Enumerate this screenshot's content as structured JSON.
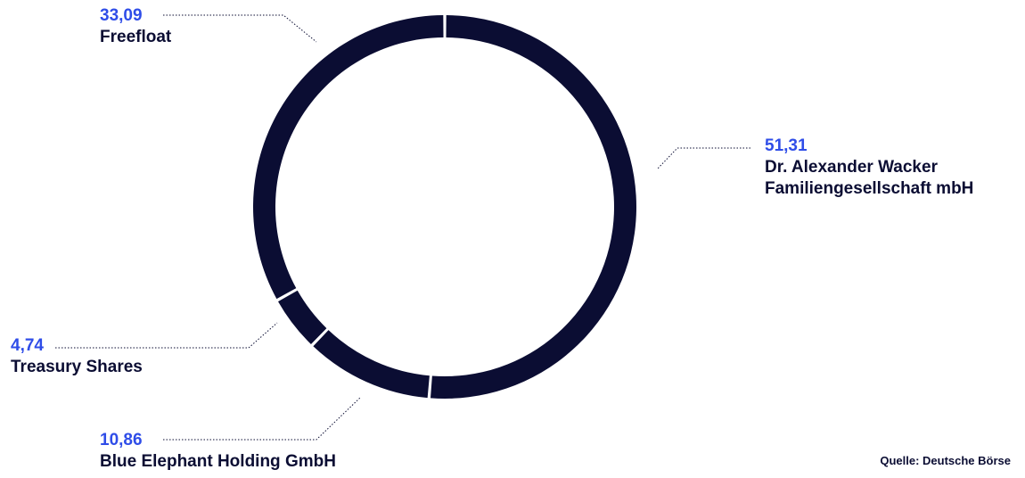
{
  "chart_data": {
    "type": "pie",
    "variant": "donut",
    "slices": [
      {
        "label": "Dr. Alexander Wacker Familiengesellschaft mbH",
        "label_lines": [
          "Dr. Alexander Wacker",
          "Familiengesellschaft mbH"
        ],
        "value": 51.31,
        "value_label": "51,31"
      },
      {
        "label": "Blue Elephant Holding GmbH",
        "label_lines": [
          "Blue Elephant Holding GmbH"
        ],
        "value": 10.86,
        "value_label": "10,86"
      },
      {
        "label": "Treasury Shares",
        "label_lines": [
          "Treasury Shares"
        ],
        "value": 4.74,
        "value_label": "4,74"
      },
      {
        "label": "Freefloat",
        "label_lines": [
          "Freefloat"
        ],
        "value": 33.09,
        "value_label": "33,09"
      }
    ],
    "slice_color": "#0b0d33",
    "value_color": "#2f4de8",
    "source": "Quelle: Deutsche Börse"
  }
}
